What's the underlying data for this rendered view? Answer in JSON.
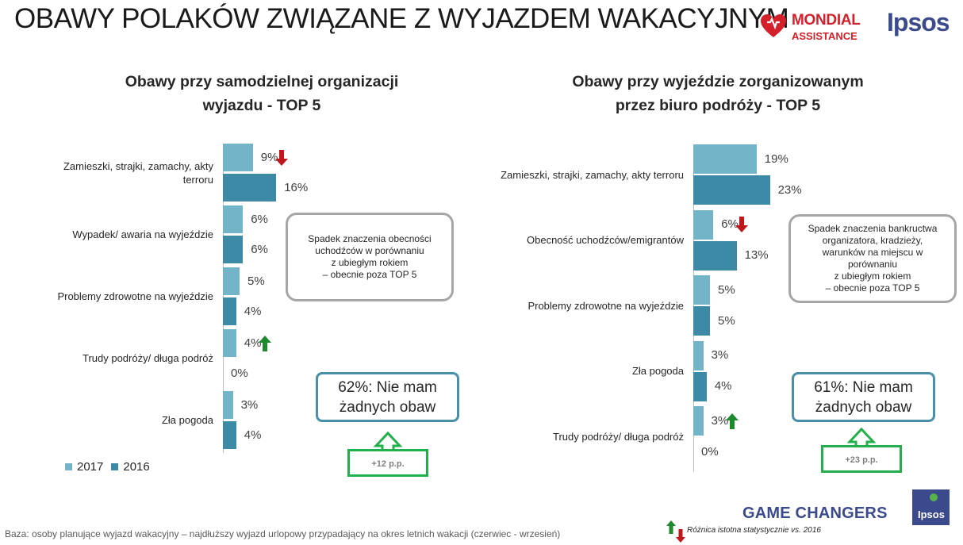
{
  "title": "OBAWY POLAKÓW ZWIĄZANE Z WYJAZDEM WAKACYJNYM",
  "logos": {
    "mondial_line1": "MONDIAL",
    "mondial_line2": "ASSISTANCE",
    "ipsos": "Ipsos",
    "ipsos_small": "Ipsos"
  },
  "colors": {
    "y2017": "#72b4c8",
    "y2016": "#3d8aa6",
    "down": "#c0161e",
    "up": "#1e8a2e",
    "none_border": "#4a8fa8",
    "pp_border": "#22b04a"
  },
  "chart_data": [
    {
      "type": "bar",
      "orientation": "horizontal",
      "title_line1": "Obawy przy samodzielnej organizacji",
      "title_line2": "wyjazdu - TOP 5",
      "categories": [
        "Zamieszki, strajki, zamachy, akty terroru",
        "Wypadek/ awaria  na wyjeździe",
        "Problemy zdrowotne na wyjeździe",
        "Trudy podróży/ długa podróż",
        "Zła pogoda"
      ],
      "series": [
        {
          "name": "2017",
          "values": [
            9,
            6,
            5,
            4,
            3
          ],
          "labels": [
            "9%",
            "6%",
            "5%",
            "4%",
            "3%"
          ]
        },
        {
          "name": "2016",
          "values": [
            16,
            6,
            4,
            0,
            4
          ],
          "labels": [
            "16%",
            "6%",
            "4%",
            "0%",
            "4%"
          ]
        }
      ],
      "significance_2017": [
        "down",
        null,
        null,
        "up",
        null
      ],
      "note": [
        "Spadek znaczenia obecności",
        "uchodźców w porównaniu",
        "z ubiegłym rokiem",
        "– obecnie poza TOP 5"
      ],
      "no_concerns_line1": "62%: Nie mam",
      "no_concerns_line2": "żadnych obaw",
      "change": "+12 p.p."
    },
    {
      "type": "bar",
      "orientation": "horizontal",
      "title_line1": "Obawy przy wyjeździe zorganizowanym",
      "title_line2": "przez biuro podróży - TOP 5",
      "categories": [
        "Zamieszki, strajki, zamachy, akty terroru",
        "Obecność uchodźców/emigrantów",
        "Problemy zdrowotne na wyjeździe",
        "Zła pogoda",
        "Trudy podróży/ długa podróż"
      ],
      "series": [
        {
          "name": "2017",
          "values": [
            19,
            6,
            5,
            3,
            3
          ],
          "labels": [
            "19%",
            "6%",
            "5%",
            "3%",
            "3%"
          ]
        },
        {
          "name": "2016",
          "values": [
            23,
            13,
            5,
            4,
            0
          ],
          "labels": [
            "23%",
            "13%",
            "5%",
            "4%",
            "0%"
          ]
        }
      ],
      "significance_2017": [
        null,
        "down",
        null,
        null,
        "up"
      ],
      "note": [
        "Spadek znaczenia bankructwa",
        "organizatora, kradzieży,",
        "warunków na miejscu w",
        "porównaniu",
        "z ubiegłym rokiem",
        "– obecnie poza TOP 5"
      ],
      "no_concerns_line1": "61%: Nie mam",
      "no_concerns_line2": "żadnych obaw",
      "change": "+23 p.p."
    }
  ],
  "legend": {
    "y2017": "2017",
    "y2016": "2016"
  },
  "footer": "Baza: osoby planujące wyjazd wakacyjny – najdłuższy wyjazd urlopowy przypadający na okres letnich wakacji (czerwiec - wrzesień)",
  "game_changers": "GAME CHANGERS",
  "significance_note": "Różnica istotna statystycznie vs. 2016"
}
